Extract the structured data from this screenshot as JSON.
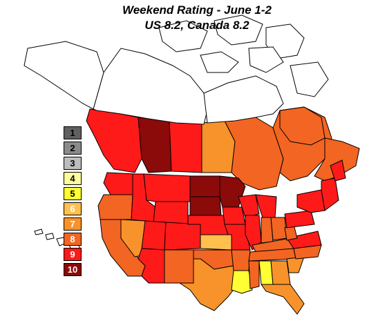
{
  "title": {
    "line1": "Weekend Rating - June 1-2",
    "line2": "US 8.2, Canada 8.2"
  },
  "legend": {
    "items": [
      {
        "label": "1",
        "color": "#606060",
        "text_color": "#000000"
      },
      {
        "label": "2",
        "color": "#8a8a8a",
        "text_color": "#000000"
      },
      {
        "label": "3",
        "color": "#bdbdbd",
        "text_color": "#000000"
      },
      {
        "label": "4",
        "color": "#ffffa0",
        "text_color": "#000000"
      },
      {
        "label": "5",
        "color": "#ffff33",
        "text_color": "#000000"
      },
      {
        "label": "6",
        "color": "#ffc04d",
        "text_color": "#ffffff"
      },
      {
        "label": "7",
        "color": "#f7932a",
        "text_color": "#ffffff"
      },
      {
        "label": "8",
        "color": "#f26522",
        "text_color": "#ffffff"
      },
      {
        "label": "9",
        "color": "#ff1a1a",
        "text_color": "#ffffff"
      },
      {
        "label": "10",
        "color": "#8b0a0a",
        "text_color": "#ffffff"
      }
    ]
  },
  "colors": {
    "rating_6": "#ffc04d",
    "rating_7": "#f7932a",
    "rating_8": "#f26522",
    "rating_9": "#ff1a1a",
    "rating_10": "#8b0a0a",
    "rating_4": "#ffffa0",
    "rating_5": "#ffff33",
    "no_data": "#ffffff",
    "outline": "#000000"
  },
  "regions": [
    {
      "name": "british-columbia",
      "rating": 9
    },
    {
      "name": "alberta",
      "rating": 10
    },
    {
      "name": "saskatchewan",
      "rating": 9
    },
    {
      "name": "manitoba",
      "rating": 7
    },
    {
      "name": "ontario",
      "rating": 8
    },
    {
      "name": "quebec",
      "rating": 8
    },
    {
      "name": "atlantic-canada",
      "rating": 8
    },
    {
      "name": "washington",
      "rating": 9
    },
    {
      "name": "oregon",
      "rating": 8
    },
    {
      "name": "california",
      "rating": 8
    },
    {
      "name": "idaho",
      "rating": 9
    },
    {
      "name": "nevada",
      "rating": 7
    },
    {
      "name": "montana",
      "rating": 9
    },
    {
      "name": "wyoming",
      "rating": 9
    },
    {
      "name": "utah",
      "rating": 9
    },
    {
      "name": "arizona",
      "rating": 9
    },
    {
      "name": "colorado",
      "rating": 9
    },
    {
      "name": "new-mexico",
      "rating": 8
    },
    {
      "name": "north-dakota",
      "rating": 10
    },
    {
      "name": "south-dakota",
      "rating": 10
    },
    {
      "name": "nebraska",
      "rating": 9
    },
    {
      "name": "kansas",
      "rating": 6
    },
    {
      "name": "oklahoma",
      "rating": 8
    },
    {
      "name": "texas",
      "rating": 7
    },
    {
      "name": "minnesota",
      "rating": 10
    },
    {
      "name": "iowa",
      "rating": 9
    },
    {
      "name": "missouri",
      "rating": 9
    },
    {
      "name": "arkansas",
      "rating": 8
    },
    {
      "name": "louisiana",
      "rating": 5
    },
    {
      "name": "wisconsin",
      "rating": 9
    },
    {
      "name": "illinois",
      "rating": 9
    },
    {
      "name": "michigan",
      "rating": 9
    },
    {
      "name": "indiana",
      "rating": 8
    },
    {
      "name": "ohio",
      "rating": 8
    },
    {
      "name": "kentucky",
      "rating": 8
    },
    {
      "name": "tennessee",
      "rating": 8
    },
    {
      "name": "mississippi",
      "rating": 8
    },
    {
      "name": "alabama",
      "rating": 5
    },
    {
      "name": "georgia",
      "rating": 7
    },
    {
      "name": "florida",
      "rating": 7
    },
    {
      "name": "south-carolina",
      "rating": 7
    },
    {
      "name": "north-carolina",
      "rating": 8
    },
    {
      "name": "virginia",
      "rating": 9
    },
    {
      "name": "west-virginia",
      "rating": 8
    },
    {
      "name": "pennsylvania",
      "rating": 9
    },
    {
      "name": "new-york",
      "rating": 9
    },
    {
      "name": "new-england",
      "rating": 9
    },
    {
      "name": "maine",
      "rating": 9
    }
  ]
}
